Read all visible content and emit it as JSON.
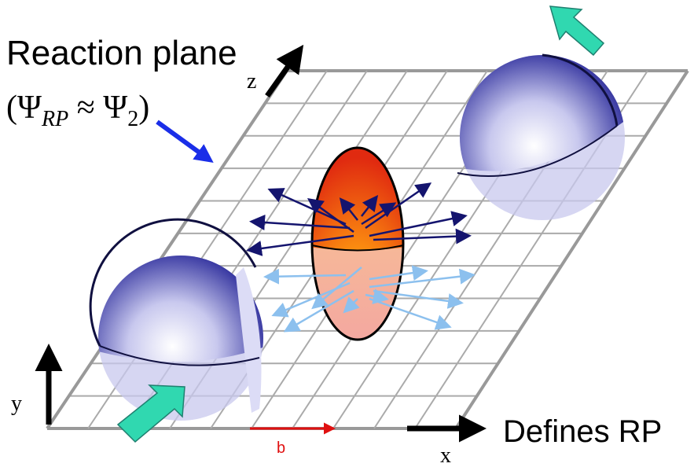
{
  "labels": {
    "title": "Reaction plane",
    "formula": [
      "(Ψ",
      "RP",
      " ≈ Ψ",
      "2",
      ")"
    ],
    "z": "z",
    "y": "y",
    "x": "x",
    "b": "b",
    "note": "Defines RP"
  }
}
